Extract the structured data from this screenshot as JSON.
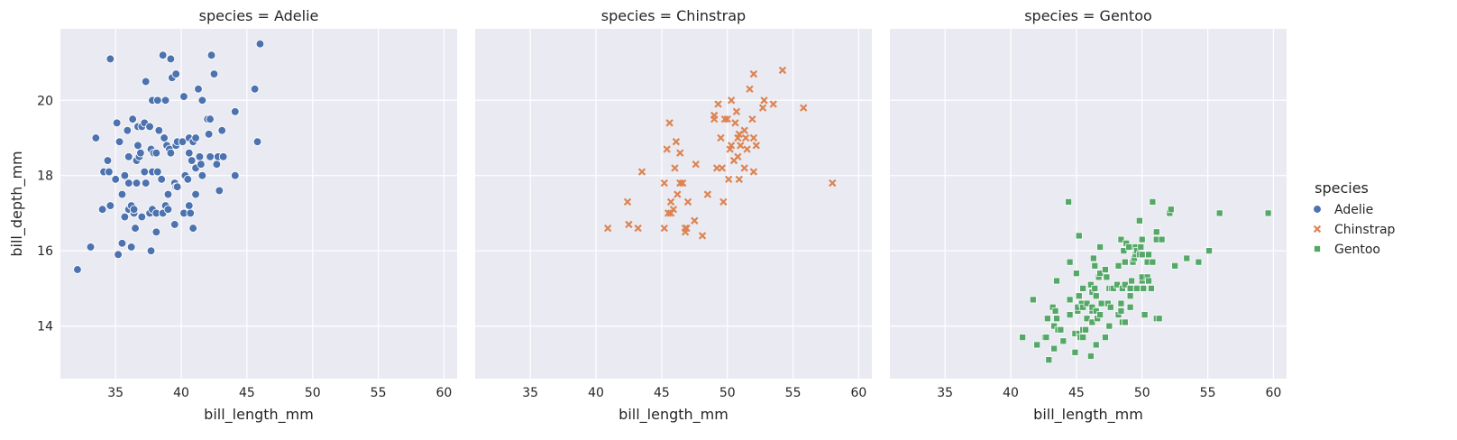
{
  "chart_data": {
    "type": "scatter",
    "facet_by": "species",
    "shared_x": true,
    "shared_y": true,
    "xlabel": "bill_length_mm",
    "ylabel": "bill_depth_mm",
    "xlim": [
      30.8,
      61.0
    ],
    "ylim": [
      12.6,
      21.9
    ],
    "xticks": [
      35,
      40,
      45,
      50,
      55,
      60
    ],
    "yticks": [
      14,
      16,
      18,
      20
    ],
    "grid": true,
    "legend": {
      "title": "species",
      "placement": "right",
      "entries": [
        {
          "label": "Adelie",
          "marker": "circle",
          "color": "#4c72b0"
        },
        {
          "label": "Chinstrap",
          "marker": "x",
          "color": "#dd8452"
        },
        {
          "label": "Gentoo",
          "marker": "square",
          "color": "#55a868"
        }
      ]
    },
    "panels": [
      {
        "title": "species = Adelie",
        "series": "Adelie",
        "points": [
          [
            32.1,
            15.5
          ],
          [
            33.1,
            16.1
          ],
          [
            33.5,
            19.0
          ],
          [
            34.0,
            17.1
          ],
          [
            34.1,
            18.1
          ],
          [
            34.4,
            18.4
          ],
          [
            34.5,
            18.1
          ],
          [
            34.6,
            21.1
          ],
          [
            34.6,
            17.2
          ],
          [
            35.0,
            17.9
          ],
          [
            35.1,
            19.4
          ],
          [
            35.2,
            15.9
          ],
          [
            35.3,
            18.9
          ],
          [
            35.5,
            16.2
          ],
          [
            35.5,
            17.5
          ],
          [
            35.7,
            16.9
          ],
          [
            35.7,
            18.0
          ],
          [
            35.9,
            19.2
          ],
          [
            36.0,
            17.1
          ],
          [
            36.0,
            17.8
          ],
          [
            36.0,
            18.5
          ],
          [
            36.2,
            16.1
          ],
          [
            36.2,
            17.2
          ],
          [
            36.3,
            19.5
          ],
          [
            36.4,
            17.0
          ],
          [
            36.4,
            17.1
          ],
          [
            36.5,
            16.6
          ],
          [
            36.6,
            17.8
          ],
          [
            36.6,
            18.4
          ],
          [
            36.7,
            18.8
          ],
          [
            36.7,
            19.3
          ],
          [
            36.8,
            18.5
          ],
          [
            36.9,
            18.6
          ],
          [
            37.0,
            16.9
          ],
          [
            37.0,
            19.3
          ],
          [
            37.2,
            18.1
          ],
          [
            37.2,
            19.4
          ],
          [
            37.3,
            17.8
          ],
          [
            37.3,
            20.5
          ],
          [
            37.6,
            17.0
          ],
          [
            37.6,
            19.3
          ],
          [
            37.7,
            16.0
          ],
          [
            37.7,
            18.7
          ],
          [
            37.8,
            17.1
          ],
          [
            37.8,
            18.1
          ],
          [
            37.8,
            20.0
          ],
          [
            37.9,
            18.6
          ],
          [
            38.1,
            16.5
          ],
          [
            38.1,
            17.0
          ],
          [
            38.1,
            18.6
          ],
          [
            38.2,
            18.1
          ],
          [
            38.2,
            20.0
          ],
          [
            38.3,
            19.2
          ],
          [
            38.5,
            17.9
          ],
          [
            38.6,
            17.0
          ],
          [
            38.6,
            21.2
          ],
          [
            38.7,
            19.0
          ],
          [
            38.8,
            17.2
          ],
          [
            38.8,
            20.0
          ],
          [
            38.9,
            18.8
          ],
          [
            39.0,
            17.1
          ],
          [
            39.0,
            17.5
          ],
          [
            39.1,
            18.7
          ],
          [
            39.2,
            18.6
          ],
          [
            39.2,
            21.1
          ],
          [
            39.3,
            20.6
          ],
          [
            39.5,
            16.7
          ],
          [
            39.5,
            17.8
          ],
          [
            39.6,
            17.7
          ],
          [
            39.6,
            18.8
          ],
          [
            39.6,
            20.7
          ],
          [
            39.7,
            17.7
          ],
          [
            39.7,
            18.9
          ],
          [
            40.1,
            18.9
          ],
          [
            40.2,
            17.0
          ],
          [
            40.2,
            20.1
          ],
          [
            40.3,
            18.0
          ],
          [
            40.5,
            17.9
          ],
          [
            40.6,
            17.2
          ],
          [
            40.6,
            18.6
          ],
          [
            40.6,
            19.0
          ],
          [
            40.7,
            17.0
          ],
          [
            40.8,
            18.4
          ],
          [
            40.9,
            16.6
          ],
          [
            40.9,
            18.9
          ],
          [
            41.1,
            17.5
          ],
          [
            41.1,
            18.2
          ],
          [
            41.1,
            19.0
          ],
          [
            41.3,
            20.3
          ],
          [
            41.4,
            18.5
          ],
          [
            41.5,
            18.3
          ],
          [
            41.6,
            18.0
          ],
          [
            41.6,
            20.0
          ],
          [
            42.0,
            19.5
          ],
          [
            42.1,
            19.1
          ],
          [
            42.2,
            18.5
          ],
          [
            42.2,
            19.5
          ],
          [
            42.3,
            21.2
          ],
          [
            42.5,
            20.7
          ],
          [
            42.7,
            18.3
          ],
          [
            42.8,
            18.5
          ],
          [
            42.9,
            17.6
          ],
          [
            43.1,
            19.2
          ],
          [
            43.2,
            18.5
          ],
          [
            44.1,
            18.0
          ],
          [
            44.1,
            19.7
          ],
          [
            45.6,
            20.3
          ],
          [
            45.8,
            18.9
          ],
          [
            46.0,
            21.5
          ]
        ]
      },
      {
        "title": "species = Chinstrap",
        "series": "Chinstrap",
        "points": [
          [
            40.9,
            16.6
          ],
          [
            42.4,
            17.3
          ],
          [
            42.5,
            16.7
          ],
          [
            43.2,
            16.6
          ],
          [
            43.5,
            18.1
          ],
          [
            45.2,
            16.6
          ],
          [
            45.2,
            17.8
          ],
          [
            45.4,
            18.7
          ],
          [
            45.5,
            17.0
          ],
          [
            45.6,
            19.4
          ],
          [
            45.7,
            17.0
          ],
          [
            45.7,
            17.3
          ],
          [
            45.9,
            17.1
          ],
          [
            46.0,
            18.2
          ],
          [
            46.1,
            18.9
          ],
          [
            46.2,
            17.5
          ],
          [
            46.4,
            17.8
          ],
          [
            46.4,
            18.6
          ],
          [
            46.6,
            17.8
          ],
          [
            46.8,
            16.5
          ],
          [
            46.8,
            16.6
          ],
          [
            46.9,
            16.6
          ],
          [
            47.0,
            17.3
          ],
          [
            47.5,
            16.8
          ],
          [
            47.6,
            18.3
          ],
          [
            48.1,
            16.4
          ],
          [
            48.5,
            17.5
          ],
          [
            49.0,
            19.5
          ],
          [
            49.0,
            19.6
          ],
          [
            49.2,
            18.2
          ],
          [
            49.3,
            19.9
          ],
          [
            49.5,
            19.0
          ],
          [
            49.6,
            18.2
          ],
          [
            49.7,
            17.3
          ],
          [
            49.8,
            19.5
          ],
          [
            50.0,
            19.5
          ],
          [
            50.1,
            17.9
          ],
          [
            50.2,
            18.7
          ],
          [
            50.3,
            18.8
          ],
          [
            50.3,
            20.0
          ],
          [
            50.5,
            18.4
          ],
          [
            50.6,
            19.4
          ],
          [
            50.7,
            19.7
          ],
          [
            50.8,
            18.5
          ],
          [
            50.8,
            19.0
          ],
          [
            50.9,
            17.9
          ],
          [
            50.9,
            19.1
          ],
          [
            51.0,
            18.8
          ],
          [
            51.3,
            18.2
          ],
          [
            51.3,
            19.2
          ],
          [
            51.4,
            19.0
          ],
          [
            51.5,
            18.7
          ],
          [
            51.7,
            20.3
          ],
          [
            51.9,
            19.5
          ],
          [
            52.0,
            18.1
          ],
          [
            52.0,
            19.0
          ],
          [
            52.0,
            20.7
          ],
          [
            52.2,
            18.8
          ],
          [
            52.7,
            19.8
          ],
          [
            52.8,
            20.0
          ],
          [
            53.5,
            19.9
          ],
          [
            54.2,
            20.8
          ],
          [
            55.8,
            19.8
          ],
          [
            58.0,
            17.8
          ]
        ]
      },
      {
        "title": "species = Gentoo",
        "series": "Gentoo",
        "points": [
          [
            40.9,
            13.7
          ],
          [
            41.7,
            14.7
          ],
          [
            42.0,
            13.5
          ],
          [
            42.6,
            13.7
          ],
          [
            42.7,
            13.7
          ],
          [
            42.8,
            14.2
          ],
          [
            42.9,
            13.1
          ],
          [
            43.2,
            14.5
          ],
          [
            43.3,
            13.4
          ],
          [
            43.3,
            14.0
          ],
          [
            43.4,
            14.4
          ],
          [
            43.5,
            14.2
          ],
          [
            43.5,
            15.2
          ],
          [
            43.6,
            13.9
          ],
          [
            43.8,
            13.9
          ],
          [
            44.0,
            13.6
          ],
          [
            44.4,
            17.3
          ],
          [
            44.5,
            14.3
          ],
          [
            44.5,
            14.7
          ],
          [
            44.5,
            15.7
          ],
          [
            44.9,
            13.3
          ],
          [
            44.9,
            13.8
          ],
          [
            45.0,
            15.4
          ],
          [
            45.1,
            14.4
          ],
          [
            45.1,
            14.5
          ],
          [
            45.2,
            13.8
          ],
          [
            45.2,
            14.8
          ],
          [
            45.2,
            16.4
          ],
          [
            45.3,
            13.7
          ],
          [
            45.4,
            14.6
          ],
          [
            45.5,
            13.7
          ],
          [
            45.5,
            13.9
          ],
          [
            45.5,
            14.5
          ],
          [
            45.5,
            15.0
          ],
          [
            45.7,
            13.9
          ],
          [
            45.8,
            14.2
          ],
          [
            45.8,
            14.6
          ],
          [
            46.1,
            13.2
          ],
          [
            46.1,
            15.1
          ],
          [
            46.2,
            14.1
          ],
          [
            46.2,
            14.4
          ],
          [
            46.2,
            14.5
          ],
          [
            46.2,
            14.9
          ],
          [
            46.3,
            15.8
          ],
          [
            46.4,
            15.0
          ],
          [
            46.4,
            15.6
          ],
          [
            46.5,
            13.5
          ],
          [
            46.5,
            14.4
          ],
          [
            46.5,
            14.8
          ],
          [
            46.6,
            14.2
          ],
          [
            46.7,
            15.3
          ],
          [
            46.8,
            14.3
          ],
          [
            46.8,
            15.4
          ],
          [
            46.8,
            16.1
          ],
          [
            46.9,
            14.6
          ],
          [
            47.2,
            13.7
          ],
          [
            47.2,
            15.5
          ],
          [
            47.3,
            15.3
          ],
          [
            47.4,
            14.6
          ],
          [
            47.5,
            14.0
          ],
          [
            47.5,
            15.0
          ],
          [
            47.6,
            14.5
          ],
          [
            47.7,
            15.0
          ],
          [
            47.8,
            15.0
          ],
          [
            48.1,
            15.1
          ],
          [
            48.2,
            14.3
          ],
          [
            48.2,
            15.6
          ],
          [
            48.4,
            14.4
          ],
          [
            48.4,
            14.6
          ],
          [
            48.4,
            16.3
          ],
          [
            48.5,
            14.1
          ],
          [
            48.5,
            15.0
          ],
          [
            48.6,
            16.0
          ],
          [
            48.7,
            14.1
          ],
          [
            48.7,
            15.1
          ],
          [
            48.7,
            15.7
          ],
          [
            48.8,
            16.2
          ],
          [
            49.0,
            16.1
          ],
          [
            49.1,
            14.5
          ],
          [
            49.1,
            14.8
          ],
          [
            49.1,
            15.0
          ],
          [
            49.2,
            15.2
          ],
          [
            49.3,
            15.7
          ],
          [
            49.4,
            15.8
          ],
          [
            49.5,
            15.9
          ],
          [
            49.5,
            16.1
          ],
          [
            49.6,
            15.0
          ],
          [
            49.6,
            16.0
          ],
          [
            49.8,
            15.9
          ],
          [
            49.8,
            16.8
          ],
          [
            49.9,
            16.1
          ],
          [
            50.0,
            15.2
          ],
          [
            50.0,
            15.3
          ],
          [
            50.0,
            15.9
          ],
          [
            50.0,
            16.3
          ],
          [
            50.1,
            15.0
          ],
          [
            50.2,
            14.3
          ],
          [
            50.4,
            15.3
          ],
          [
            50.4,
            15.7
          ],
          [
            50.5,
            15.2
          ],
          [
            50.5,
            15.9
          ],
          [
            50.7,
            15.0
          ],
          [
            50.8,
            15.7
          ],
          [
            50.8,
            17.3
          ],
          [
            51.1,
            14.2
          ],
          [
            51.1,
            16.3
          ],
          [
            51.1,
            16.5
          ],
          [
            51.3,
            14.2
          ],
          [
            51.5,
            16.3
          ],
          [
            52.1,
            17.0
          ],
          [
            52.2,
            17.1
          ],
          [
            52.5,
            15.6
          ],
          [
            53.4,
            15.8
          ],
          [
            54.3,
            15.7
          ],
          [
            55.1,
            16.0
          ],
          [
            55.9,
            17.0
          ],
          [
            59.6,
            17.0
          ]
        ]
      }
    ]
  }
}
